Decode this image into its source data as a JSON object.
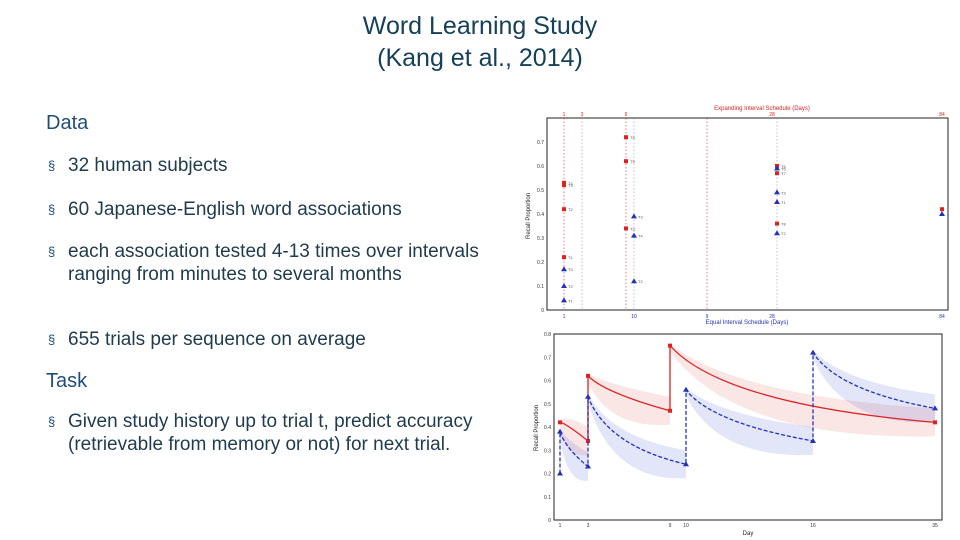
{
  "slide": {
    "title_line1": "Word Learning Study",
    "title_line2": "(Kang et al., 2014)"
  },
  "left": {
    "data_heading": "Data",
    "data_bullets": [
      "32 human subjects",
      "60 Japanese-English word associations",
      "each association tested 4-13 times over intervals ranging from minutes to several months",
      "655 trials per sequence on average"
    ],
    "task_heading": "Task",
    "task_bullets": [
      "Given study history up to trial t, predict accuracy (retrievable from memory or not) for next trial."
    ],
    "bullet_glyph": "§"
  },
  "chart_data": [
    {
      "type": "scatter",
      "title": "Expanding Interval Schedule (Days)",
      "xlabel": "Equal Interval Schedule (Days)",
      "ylabel": "Recall Proportion",
      "top_axis_ticks": [
        "1",
        "3",
        "9",
        "28",
        "84"
      ],
      "bottom_axis_ticks": [
        "1",
        "10",
        "9",
        "28",
        "84"
      ],
      "y_ticks": [
        "0",
        "0.1",
        "0.2",
        "0.3",
        "0.4",
        "0.5",
        "0.6",
        "0.7"
      ],
      "ylim": [
        0,
        0.8
      ],
      "series": [
        {
          "color": "#dd2222",
          "marker": "square",
          "points": [
            {
              "x": 1,
              "y": 0.22,
              "label": "T1"
            },
            {
              "x": 1,
              "y": 0.42,
              "label": "T2"
            },
            {
              "x": 1,
              "y": 0.52,
              "label": "T3"
            },
            {
              "x": 1,
              "y": 0.53,
              "label": "T4"
            },
            {
              "x": 9,
              "y": 0.62,
              "label": "T5"
            },
            {
              "x": 9,
              "y": 0.72,
              "label": "T6"
            },
            {
              "x": 9,
              "y": 0.34,
              "label": "T3"
            },
            {
              "x": 28,
              "y": 0.6,
              "label": "T6"
            },
            {
              "x": 28,
              "y": 0.57,
              "label": "T7"
            },
            {
              "x": 28,
              "y": 0.36,
              "label": "T8"
            },
            {
              "x": 84,
              "y": 0.42,
              "label": ""
            }
          ]
        },
        {
          "color": "#2233bb",
          "marker": "triangle",
          "points": [
            {
              "x": 1,
              "y": 0.04,
              "label": "T1"
            },
            {
              "x": 1,
              "y": 0.1,
              "label": "T2"
            },
            {
              "x": 1,
              "y": 0.17,
              "label": "T3"
            },
            {
              "x": 10,
              "y": 0.12,
              "label": "T2"
            },
            {
              "x": 10,
              "y": 0.39,
              "label": "T3"
            },
            {
              "x": 10,
              "y": 0.31,
              "label": "T4"
            },
            {
              "x": 28,
              "y": 0.45,
              "label": "T1"
            },
            {
              "x": 28,
              "y": 0.32,
              "label": "T2"
            },
            {
              "x": 28,
              "y": 0.59,
              "label": "T5"
            },
            {
              "x": 28,
              "y": 0.49,
              "label": "T3"
            },
            {
              "x": 84,
              "y": 0.4,
              "label": ""
            }
          ]
        }
      ]
    },
    {
      "type": "line",
      "xlabel": "Day",
      "ylabel": "Recall Proportion",
      "x_ticks": [
        "1",
        "3",
        "9",
        "10",
        "16",
        "35"
      ],
      "y_ticks": [
        "0",
        "0.1",
        "0.2",
        "0.3",
        "0.4",
        "0.5",
        "0.6",
        "0.7",
        "0.8"
      ],
      "ylim": [
        0,
        0.8
      ],
      "series": [
        {
          "color": "#dd2222",
          "style": "solid",
          "points": [
            {
              "x": 1,
              "y": 0.42
            },
            {
              "x": 3,
              "y": 0.34
            },
            {
              "x": 3,
              "y": 0.62
            },
            {
              "x": 9,
              "y": 0.47
            },
            {
              "x": 9,
              "y": 0.75
            },
            {
              "x": 35,
              "y": 0.42
            }
          ]
        },
        {
          "color": "#2233bb",
          "style": "dashed",
          "points": [
            {
              "x": 1,
              "y": 0.2
            },
            {
              "x": 1,
              "y": 0.38
            },
            {
              "x": 3,
              "y": 0.23
            },
            {
              "x": 3,
              "y": 0.53
            },
            {
              "x": 10,
              "y": 0.24
            },
            {
              "x": 10,
              "y": 0.56
            },
            {
              "x": 16,
              "y": 0.34
            },
            {
              "x": 16,
              "y": 0.72
            },
            {
              "x": 35,
              "y": 0.48
            }
          ]
        }
      ]
    }
  ]
}
